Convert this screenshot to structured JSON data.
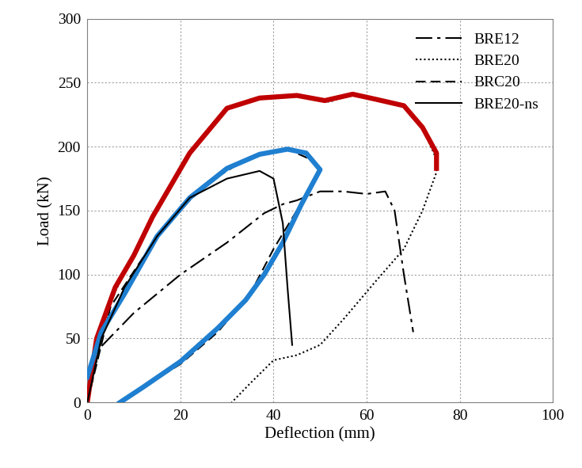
{
  "chart_data": {
    "type": "line",
    "x_label": "Deflection (mm)",
    "y_label": "Load (kN)",
    "xlim": [
      0,
      100
    ],
    "xticks": [
      0,
      20,
      40,
      60,
      80,
      100
    ],
    "ylim": [
      0,
      300
    ],
    "yticks": [
      0,
      50,
      100,
      150,
      200,
      250,
      300
    ],
    "grid": true,
    "legend": "upper right",
    "series": [
      {
        "name": "BRE12",
        "color": "#000000",
        "line_style": "dashdot",
        "x": [
          0,
          2,
          10,
          20,
          30,
          38,
          42,
          45,
          50,
          55,
          60,
          64,
          66,
          68,
          70
        ],
        "values": [
          0,
          40,
          70,
          100,
          125,
          148,
          155,
          158,
          165,
          165,
          163,
          165,
          150,
          100,
          55
        ]
      },
      {
        "name": "BRE20",
        "color": "#000000",
        "line_style": "dotted",
        "x": [
          0,
          5,
          10,
          15,
          20,
          30,
          37,
          45,
          52,
          57,
          68,
          72,
          75,
          75,
          72,
          68,
          62,
          55,
          50,
          45,
          40,
          35,
          31
        ],
        "values": [
          0,
          80,
          115,
          150,
          185,
          230,
          238,
          240,
          235,
          241,
          232,
          215,
          190,
          180,
          150,
          120,
          95,
          65,
          45,
          37,
          33,
          15,
          0
        ]
      },
      {
        "name": "BRC20",
        "color": "#000000",
        "line_style": "dashed",
        "x": [
          0,
          5,
          15,
          25,
          35,
          43,
          48,
          50,
          45,
          40,
          35,
          28,
          20,
          12,
          7
        ],
        "values": [
          0,
          75,
          130,
          170,
          192,
          198,
          190,
          182,
          150,
          120,
          85,
          55,
          30,
          12,
          0
        ]
      },
      {
        "name": "BRE20-ns",
        "color": "#000000",
        "line_style": "solid",
        "x": [
          0,
          3,
          8,
          15,
          22,
          30,
          37,
          40,
          42,
          43,
          44
        ],
        "values": [
          0,
          50,
          90,
          130,
          160,
          175,
          181,
          175,
          140,
          90,
          45
        ]
      },
      {
        "color": "#c00000",
        "line_style": "solid",
        "x": [
          0,
          2,
          6,
          10,
          14,
          22,
          30,
          37,
          45,
          51,
          57,
          62,
          68,
          72,
          75,
          75
        ],
        "values": [
          0,
          50,
          90,
          115,
          145,
          195,
          230,
          238,
          240,
          236,
          241,
          237,
          232,
          215,
          195,
          183
        ]
      },
      {
        "color": "#1f7fd0",
        "line_style": "solid",
        "x": [
          0,
          3,
          8,
          15,
          22,
          30,
          37,
          43,
          47,
          50,
          46,
          42,
          38,
          34,
          28,
          20,
          12,
          7
        ],
        "values": [
          20,
          55,
          85,
          130,
          160,
          183,
          194,
          198,
          195,
          182,
          155,
          125,
          100,
          80,
          58,
          32,
          12,
          0
        ]
      }
    ]
  }
}
